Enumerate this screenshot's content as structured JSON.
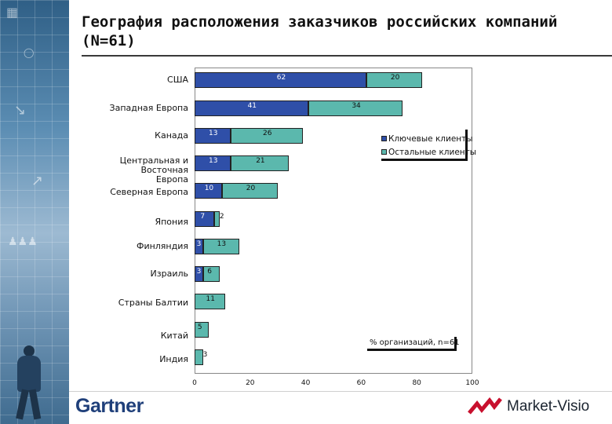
{
  "title": "География расположения заказчиков российских компаний (N=61)",
  "colors": {
    "key": "#2f4fa8",
    "other": "#5bb8ad"
  },
  "chart_data": {
    "type": "bar",
    "orientation": "horizontal",
    "stacked": true,
    "categories": [
      "США",
      "Западная Европа",
      "Канада",
      "Центральная и Восточная Европа",
      "Северная Европа",
      "Япония",
      "Финляндия",
      "Израиль",
      "Страны Балтии",
      "Китай",
      "Индия"
    ],
    "category_display": [
      [
        "США"
      ],
      [
        "Западная Европа"
      ],
      [
        "Канада"
      ],
      [
        "Центральная и",
        "Восточная",
        "Европа"
      ],
      [
        "Северная Европа"
      ],
      [
        "Япония"
      ],
      [
        "Финляндия"
      ],
      [
        "Израиль"
      ],
      [
        "Страны Балтии"
      ],
      [
        "Китай"
      ],
      [
        "Индия"
      ]
    ],
    "series": [
      {
        "name": "Ключевые клиенты",
        "values": [
          62,
          41,
          13,
          13,
          10,
          7,
          3,
          3,
          0,
          0,
          0
        ]
      },
      {
        "name": "Остальные клиенты",
        "values": [
          20,
          34,
          26,
          21,
          20,
          2,
          13,
          6,
          11,
          5,
          3
        ]
      }
    ],
    "labels": [
      [
        "62",
        "20"
      ],
      [
        "41",
        "34"
      ],
      [
        "13",
        "26"
      ],
      [
        "13",
        "21"
      ],
      [
        "10",
        "20"
      ],
      [
        "7",
        "2"
      ],
      [
        "3",
        "13"
      ],
      [
        "3",
        "6"
      ],
      [
        "",
        "11"
      ],
      [
        "",
        "5"
      ],
      [
        "",
        "3"
      ]
    ],
    "x_ticks": [
      "0",
      "20",
      "40",
      "60",
      "80",
      "100"
    ],
    "xlim": [
      0,
      100
    ],
    "legend": [
      "Ключевые клиенты",
      "Остальные клиенты"
    ],
    "legend_position": "top-right",
    "note": "% организаций, n=61"
  },
  "footer": {
    "left_logo": "Gartner",
    "right_logo": "Market-Visio"
  }
}
